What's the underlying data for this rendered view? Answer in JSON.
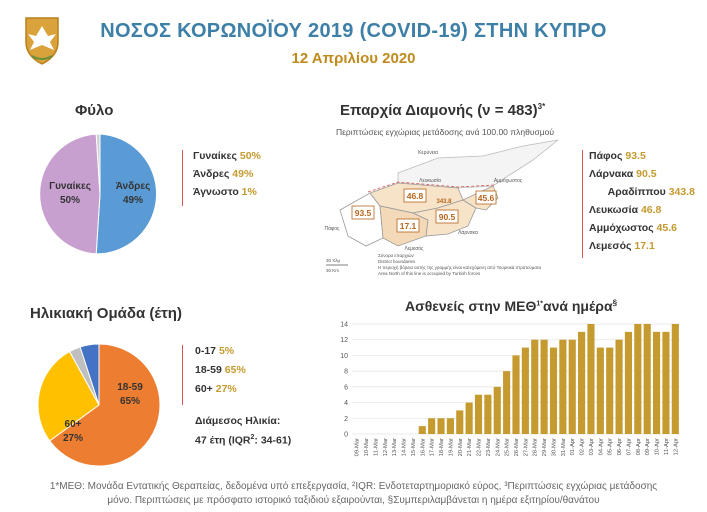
{
  "header": {
    "title": "ΝΟΣΟΣ ΚΟΡΩΝΟΪΟΥ 2019 (COVID-19) ΣΤΗΝ ΚΥΠΡΟ",
    "date": "12 Απριλίου 2020"
  },
  "colors": {
    "title": "#3d7fa6",
    "date": "#c08a1c",
    "bar": "#c59a2e",
    "male": "#5b9bd5",
    "female": "#c8a0d0",
    "unknown": "#d0d0d0",
    "age_0_17": "#4472c4",
    "age_18_59": "#ed7d31",
    "age_60_plus": "#ffc000",
    "age_other": "#bfbfbf",
    "separator": "#d9534f"
  },
  "gender": {
    "title": "Φύλο",
    "legend": [
      {
        "label": "Γυναίκες",
        "value": "50%"
      },
      {
        "label": "Άνδρες",
        "value": "49%"
      },
      {
        "label": "Άγνωστο",
        "value": "1%"
      }
    ],
    "slice_labels": {
      "female": "Γυναίκες",
      "female_pct": "50%",
      "male": "Άνδρες",
      "male_pct": "49%"
    }
  },
  "districts": {
    "title": "Επαρχία Διαμονής (ν = 483)",
    "title_sup": "3*",
    "subtitle": "Περιπτώσεις εγχώριας μετάδοσης ανά 100.00 πληθυσμού",
    "legend": [
      {
        "label": "Πάφος",
        "value": "93.5"
      },
      {
        "label": "Λάρνακα",
        "value": "90.5"
      },
      {
        "label": "Αραδίππου",
        "value": "343.8"
      },
      {
        "label": "Λευκωσία",
        "value": "46.8"
      },
      {
        "label": "Αμμόχωστος",
        "value": "45.6"
      },
      {
        "label": "Λεμεσός",
        "value": "17.1"
      }
    ],
    "map_values": {
      "pafos": "93.5",
      "larnaka": "90.5",
      "aradippou": "343.8",
      "lefkosia": "46.8",
      "ammochostos": "45.6",
      "lemesos": "17.1"
    },
    "map_places": {
      "kyrenia": "Κερύνεια",
      "nicosia": "Λευκωσία",
      "famagusta": "Αμμόχωστος",
      "larnaca": "Λάρνακα",
      "limassol": "Λεμεσός",
      "paphos": "Πάφος"
    },
    "map_legend": {
      "line1": "Σύνορα επαρχιών",
      "line2": "District boundaries",
      "line3": "Η περιοχή βόρεια αυτής της γραμμής είναι κατεχόμενη από Τουρκικά στρατεύματα",
      "line4": "Area North of this line is occupied by Turkish forces",
      "scale1": "30 Χλμ",
      "scale2": "30 Km"
    }
  },
  "age": {
    "title": "Ηλικιακή Ομάδα (έτη)",
    "legend": [
      {
        "label": "0-17",
        "value": "5%"
      },
      {
        "label": "18-59",
        "value": "65%"
      },
      {
        "label": "60+",
        "value": "27%"
      }
    ],
    "median_label": "Διάμεσος Ηλικία:",
    "median_value": "47 έτη (IQR",
    "median_sup": "2",
    "median_range": ": 34-61)",
    "slice_labels": {
      "adult": "18-59",
      "adult_pct": "65%",
      "senior": "60+",
      "senior_pct": "27%"
    }
  },
  "icu": {
    "title": "Ασθενείς στην ΜΕΘ",
    "title_sup1": "1*",
    "title_rest": "ανά ημέρα",
    "title_sup2": "§"
  },
  "chart_data": [
    {
      "type": "pie",
      "title": "Φύλο",
      "categories": [
        "Άνδρες",
        "Γυναίκες",
        "Άγνωστο"
      ],
      "values": [
        49,
        50,
        1
      ]
    },
    {
      "type": "pie",
      "title": "Ηλικιακή Ομάδα (έτη)",
      "categories": [
        "18-59",
        "60+",
        "",
        "0-17"
      ],
      "values": [
        65,
        27,
        3,
        5
      ]
    },
    {
      "type": "bar",
      "title": "Ασθενείς στην ΜΕΘ ανά ημέρα",
      "categories": [
        "09-Mar",
        "10-Mar",
        "11-Mar",
        "12-Mar",
        "13-Mar",
        "14-Mar",
        "15-Mar",
        "16-Mar",
        "17-Mar",
        "18-Mar",
        "19-Mar",
        "20-Mar",
        "21-Mar",
        "22-Mar",
        "23-Mar",
        "24-Mar",
        "25-Mar",
        "26-Mar",
        "27-Mar",
        "28-Mar",
        "29-Mar",
        "30-Mar",
        "31-Mar",
        "01-Apr",
        "02-Apr",
        "03-Apr",
        "04-Apr",
        "05-Apr",
        "06-Apr",
        "07-Apr",
        "08-Apr",
        "09-Apr",
        "10-Apr",
        "11-Apr",
        "12-Apr"
      ],
      "values": [
        0,
        0,
        0,
        0,
        0,
        0,
        0,
        1,
        2,
        2,
        2,
        3,
        4,
        5,
        5,
        6,
        8,
        10,
        11,
        12,
        12,
        11,
        12,
        12,
        13,
        14,
        11,
        11,
        12,
        13,
        14,
        14,
        13,
        13,
        14
      ],
      "ylim": [
        0,
        14
      ],
      "yticks": [
        0,
        2,
        4,
        6,
        8,
        10,
        12,
        14
      ],
      "grid": true
    }
  ],
  "footnote": {
    "line1": "1*ΜΕΘ: Μονάδα Εντατικής Θεραπείας, δεδομένα υπό επεξεργασία, ²IQR: Ενδοτεταρτημοριακό εύρος, ³Περιπτώσεις εγχώριας μετάδοσης",
    "line2": "μόνο. Περιπτώσεις με πρόσφατο ιστορικό ταξιδιού εξαιρούνται, §Συμπεριλαμβάνεται η ημέρα εξιτηρίου/θανάτου"
  }
}
